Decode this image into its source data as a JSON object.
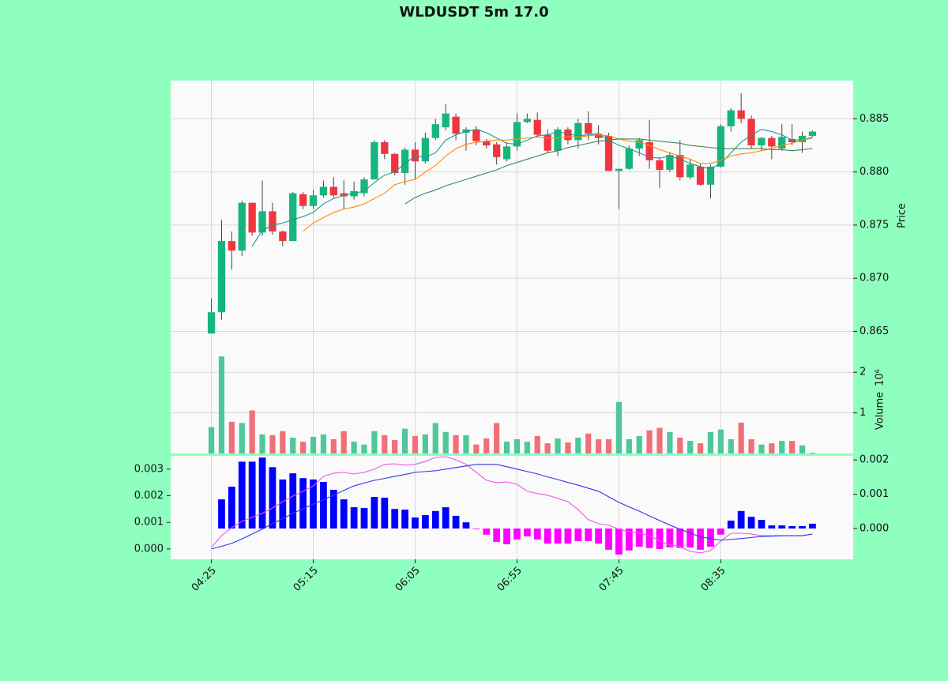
{
  "chart_data": [
    {
      "type": "candlestick",
      "title": "WLDUSDT 5m 17.0",
      "ylabel": "Price",
      "grid": true,
      "y_side": "right",
      "categories": [
        "04:25",
        null,
        null,
        null,
        null,
        null,
        null,
        null,
        null,
        null,
        "05:15",
        null,
        null,
        null,
        null,
        null,
        null,
        null,
        null,
        null,
        "06:05",
        null,
        null,
        null,
        null,
        null,
        null,
        null,
        null,
        null,
        "06:55",
        null,
        null,
        null,
        null,
        null,
        null,
        null,
        null,
        null,
        "07:45",
        null,
        null,
        null,
        null,
        null,
        null,
        null,
        null,
        null,
        "08:35",
        null,
        null,
        null,
        null,
        null,
        null,
        null,
        null,
        null
      ],
      "xlim": [
        -4,
        63
      ],
      "open": [
        0.8648,
        0.8668,
        0.8735,
        0.8726,
        0.8771,
        0.8743,
        0.8763,
        0.8744,
        0.8735,
        0.8779,
        0.8768,
        0.8778,
        0.8786,
        0.878,
        0.8777,
        0.878,
        0.8793,
        0.8828,
        0.8817,
        0.8799,
        0.8821,
        0.881,
        0.8832,
        0.8842,
        0.8852,
        0.8837,
        0.884,
        0.8829,
        0.8826,
        0.8812,
        0.8824,
        0.8847,
        0.8849,
        0.8835,
        0.882,
        0.884,
        0.883,
        0.8846,
        0.8836,
        0.8834,
        0.8801,
        0.8803,
        0.8822,
        0.8828,
        0.8811,
        0.8802,
        0.8816,
        0.8795,
        0.8805,
        0.8788,
        0.8805,
        0.8843,
        0.8858,
        0.885,
        0.8825,
        0.8832,
        0.8822,
        0.8831,
        0.8828,
        0.8834
      ],
      "high": [
        0.8681,
        0.8755,
        0.8744,
        0.8773,
        0.8771,
        0.8792,
        0.8771,
        0.8745,
        0.8781,
        0.8781,
        0.8783,
        0.8792,
        0.8795,
        0.8792,
        0.8791,
        0.8795,
        0.883,
        0.883,
        0.8818,
        0.8823,
        0.8828,
        0.8837,
        0.885,
        0.8864,
        0.8855,
        0.8842,
        0.8843,
        0.8831,
        0.8828,
        0.8828,
        0.8855,
        0.8855,
        0.8856,
        0.884,
        0.8842,
        0.8842,
        0.885,
        0.8857,
        0.8844,
        0.8837,
        0.8803,
        0.8825,
        0.8832,
        0.8849,
        0.8814,
        0.8819,
        0.883,
        0.8812,
        0.8808,
        0.8807,
        0.8845,
        0.886,
        0.8874,
        0.8853,
        0.8833,
        0.8834,
        0.8845,
        0.8845,
        0.8838,
        0.8839
      ],
      "low": [
        0.8648,
        0.8661,
        0.8708,
        0.8721,
        0.874,
        0.874,
        0.8741,
        0.873,
        0.8735,
        0.8765,
        0.8765,
        0.8776,
        0.8776,
        0.8765,
        0.8774,
        0.8777,
        0.8793,
        0.8812,
        0.8797,
        0.8788,
        0.8793,
        0.8808,
        0.883,
        0.8839,
        0.883,
        0.882,
        0.8825,
        0.8822,
        0.8807,
        0.881,
        0.882,
        0.8846,
        0.8833,
        0.8818,
        0.8815,
        0.8826,
        0.8822,
        0.883,
        0.8826,
        0.8801,
        0.8765,
        0.8802,
        0.8815,
        0.8803,
        0.8785,
        0.88,
        0.8792,
        0.8793,
        0.8787,
        0.8775,
        0.8804,
        0.8838,
        0.8846,
        0.8822,
        0.882,
        0.8812,
        0.882,
        0.8825,
        0.8818,
        0.8833
      ],
      "close": [
        0.8668,
        0.8735,
        0.8726,
        0.8771,
        0.8743,
        0.8763,
        0.8744,
        0.8735,
        0.878,
        0.8768,
        0.8778,
        0.8786,
        0.8778,
        0.8777,
        0.8782,
        0.8793,
        0.8828,
        0.8817,
        0.8799,
        0.8821,
        0.881,
        0.8832,
        0.8845,
        0.8855,
        0.8836,
        0.884,
        0.8829,
        0.8825,
        0.8814,
        0.8824,
        0.8847,
        0.885,
        0.8835,
        0.882,
        0.884,
        0.883,
        0.8846,
        0.8836,
        0.8832,
        0.8801,
        0.8803,
        0.8822,
        0.883,
        0.8811,
        0.8802,
        0.8816,
        0.8795,
        0.8807,
        0.8788,
        0.8805,
        0.8843,
        0.8858,
        0.885,
        0.8825,
        0.8832,
        0.8824,
        0.8833,
        0.8828,
        0.8834,
        0.8838
      ],
      "up_color": "#16b57b",
      "down_color": "#f0353f",
      "wick_color": "#444444",
      "series": [
        {
          "color": "#1a9a9a",
          "values": [
            null,
            null,
            null,
            null,
            0.873,
            0.8745,
            0.875,
            0.8752,
            0.8755,
            0.8758,
            0.8762,
            0.877,
            0.8775,
            0.8778,
            0.878,
            0.8782,
            0.879,
            0.8797,
            0.88,
            0.8808,
            0.8815,
            0.8814,
            0.8818,
            0.883,
            0.8835,
            0.8838,
            0.884,
            0.8837,
            0.8832,
            0.8827,
            0.8826,
            0.883,
            0.8834,
            0.8835,
            0.8838,
            0.8836,
            0.8834,
            0.8835,
            0.8836,
            0.883,
            0.8825,
            0.8822,
            0.8818,
            0.8814,
            0.8813,
            0.8815,
            0.8812,
            0.8808,
            0.8805,
            0.8803,
            0.8808,
            0.8818,
            0.8828,
            0.8835,
            0.884,
            0.8838,
            0.8835,
            0.883,
            0.883,
            0.8832
          ]
        },
        {
          "color": "#ff8c00",
          "values": [
            null,
            null,
            null,
            null,
            null,
            null,
            null,
            null,
            null,
            0.8744,
            0.8752,
            0.8757,
            0.8762,
            0.8765,
            0.8767,
            0.877,
            0.8775,
            0.878,
            0.8788,
            0.8791,
            0.8793,
            0.88,
            0.8806,
            0.8815,
            0.8822,
            0.8826,
            0.8828,
            0.8829,
            0.883,
            0.883,
            0.8831,
            0.8832,
            0.8833,
            0.8832,
            0.8832,
            0.8833,
            0.8833,
            0.8834,
            0.8835,
            0.8834,
            0.8831,
            0.8829,
            0.8828,
            0.8825,
            0.8821,
            0.8818,
            0.8815,
            0.8812,
            0.8808,
            0.8808,
            0.8811,
            0.8815,
            0.8817,
            0.8818,
            0.882,
            0.8822,
            0.8825,
            0.8827,
            0.883,
            0.8833
          ]
        },
        {
          "color": "#3a8a55",
          "values": [
            null,
            null,
            null,
            null,
            null,
            null,
            null,
            null,
            null,
            null,
            null,
            null,
            null,
            null,
            null,
            null,
            null,
            null,
            null,
            0.877,
            0.8776,
            0.878,
            0.8783,
            0.8787,
            0.879,
            0.8793,
            0.8796,
            0.8799,
            0.8802,
            0.8806,
            0.8809,
            0.8812,
            0.8815,
            0.8818,
            0.882,
            0.8823,
            0.8825,
            0.8827,
            0.8829,
            0.883,
            0.8831,
            0.8831,
            0.8831,
            0.883,
            0.8829,
            0.8828,
            0.8827,
            0.8825,
            0.8824,
            0.8823,
            0.8822,
            0.8822,
            0.8822,
            0.8822,
            0.8822,
            0.8821,
            0.8821,
            0.882,
            0.8821,
            0.8822
          ]
        }
      ],
      "ylim": [
        0.8631,
        0.8886
      ],
      "yticks": [
        0.865,
        {
          "value": 0.87,
          "label": "0.870"
        },
        0.875,
        {
          "value": 0.88,
          "label": "0.880"
        },
        0.885
      ]
    },
    {
      "type": "bar",
      "ylabel": "Volume",
      "y_offset_label": "10⁶",
      "grid": true,
      "y_side": "right",
      "up_color": "#4fc79b",
      "down_color": "#f06f79",
      "values": [
        0.65,
        2.39,
        0.78,
        0.75,
        1.06,
        0.47,
        0.45,
        0.55,
        0.39,
        0.29,
        0.41,
        0.47,
        0.35,
        0.55,
        0.29,
        0.22,
        0.55,
        0.45,
        0.33,
        0.61,
        0.43,
        0.47,
        0.75,
        0.53,
        0.45,
        0.45,
        0.22,
        0.37,
        0.75,
        0.29,
        0.35,
        0.29,
        0.43,
        0.25,
        0.37,
        0.27,
        0.39,
        0.49,
        0.35,
        0.35,
        1.27,
        0.35,
        0.43,
        0.57,
        0.63,
        0.53,
        0.39,
        0.31,
        0.25,
        0.53,
        0.59,
        0.35,
        0.76,
        0.35,
        0.22,
        0.25,
        0.31,
        0.31,
        0.2,
        0.02
      ],
      "ylim": [
        0,
        2.51
      ],
      "yticks": [
        1,
        2
      ]
    },
    {
      "type": "macd",
      "grid": true,
      "series": [
        {
          "color": "#ee55ee",
          "values": [
            6e-05,
            0.0005,
            0.0008,
            0.00104,
            0.00119,
            0.00134,
            0.00154,
            0.00178,
            0.00199,
            0.00217,
            0.00237,
            0.00273,
            0.00285,
            0.00288,
            0.00282,
            0.00288,
            0.003,
            0.00318,
            0.0032,
            0.00315,
            0.00318,
            0.00329,
            0.00344,
            0.00347,
            0.00335,
            0.00318,
            0.00288,
            0.00258,
            0.00249,
            0.00252,
            0.00243,
            0.00217,
            0.00208,
            0.00202,
            0.0019,
            0.00178,
            0.00148,
            0.0011,
            0.00095,
            0.00089,
            0.00074,
            0.00065,
            0.00059,
            0.0005,
            0.0003,
            0.00015,
            9e-05,
            -9e-05,
            -0.00015,
            -6e-05,
            0.0003,
            0.00059,
            0.00059,
            0.00056,
            0.0005,
            0.0005,
            0.0005,
            0.0005,
            0.0005,
            0.00056
          ]
        },
        {
          "color": "#3333ee",
          "values": [
            0,
            0.0001,
            0.00021,
            0.00038,
            0.00056,
            0.00075,
            0.00095,
            0.00114,
            0.00134,
            0.00151,
            0.00169,
            0.00185,
            0.00202,
            0.0022,
            0.00237,
            0.00248,
            0.00258,
            0.00265,
            0.00273,
            0.0028,
            0.00288,
            0.00291,
            0.00294,
            0.003,
            0.00306,
            0.00312,
            0.00318,
            0.00318,
            0.00318,
            0.00309,
            0.003,
            0.00291,
            0.00282,
            0.00271,
            0.00261,
            0.0025,
            0.0024,
            0.00228,
            0.00217,
            0.00196,
            0.00175,
            0.00158,
            0.00142,
            0.00124,
            0.00107,
            0.0009,
            0.00074,
            0.0006,
            0.00045,
            0.00039,
            0.00033,
            0.00036,
            0.00039,
            0.00043,
            0.00047,
            0.00048,
            0.0005,
            0.0005,
            0.0005,
            0.00056
          ]
        }
      ],
      "histogram": {
        "axis": "y2",
        "positive_color": "#0000ff",
        "negative_color": "#ff00ff",
        "values": [
          null,
          0.00085,
          0.00122,
          0.00195,
          0.00195,
          0.00207,
          0.00179,
          0.00143,
          0.00161,
          0.00147,
          0.00143,
          0.00136,
          0.00113,
          0.00085,
          0.00062,
          0.0006,
          0.00092,
          0.0009,
          0.00057,
          0.00055,
          0.00032,
          0.00039,
          0.00051,
          0.00062,
          0.00037,
          0.00018,
          -2e-05,
          -0.00018,
          -0.00039,
          -0.00046,
          -0.00032,
          -0.00023,
          -0.00032,
          -0.00044,
          -0.00044,
          -0.00044,
          -0.00037,
          -0.00037,
          -0.00044,
          -0.00062,
          -0.00076,
          -0.00064,
          -0.00053,
          -0.00057,
          -0.0006,
          -0.00055,
          -0.00057,
          -0.00055,
          -0.00062,
          -0.00053,
          -0.00018,
          0.00023,
          0.00051,
          0.00034,
          0.00025,
          9e-05,
          9e-05,
          7e-05,
          7e-05,
          0.00014
        ]
      },
      "ylim": [
        -0.00039,
        0.0035
      ],
      "yticks": [
        {
          "value": 0,
          "label": "0.000"
        },
        {
          "value": 0.001,
          "label": "0.001"
        },
        {
          "value": 0.002,
          "label": "0.002"
        },
        {
          "value": 0.003,
          "label": "0.003"
        }
      ],
      "y2lim": [
        -0.0009,
        0.00212
      ],
      "y2ticks": [
        {
          "value": 0,
          "label": "0.000"
        },
        {
          "value": 0.001,
          "label": "0.001"
        },
        {
          "value": 0.002,
          "label": "0.002"
        }
      ]
    }
  ]
}
